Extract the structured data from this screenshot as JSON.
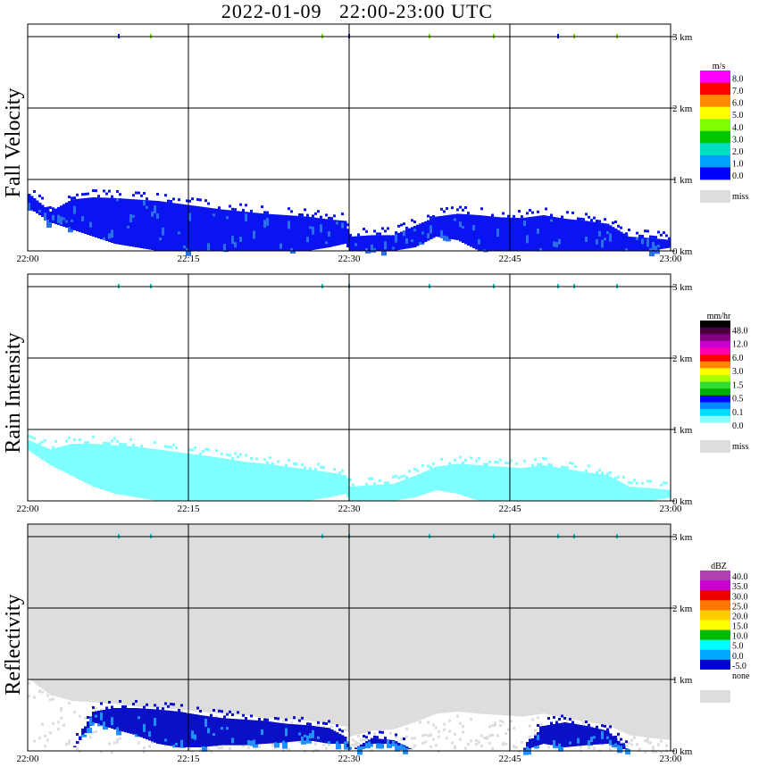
{
  "title": "2022-01-09   22:00-23:00 UTC",
  "x_tick_labels": [
    "22:00",
    "22:15",
    "22:30",
    "22:45",
    "23:00"
  ],
  "y_tick_labels": [
    "0 km",
    "1 km",
    "2 km",
    "3 km"
  ],
  "chart_data": [
    {
      "type": "heatmap",
      "ylabel": "Fall Velocity",
      "legend_unit": "m/s",
      "xlim": [
        "22:00",
        "23:00"
      ],
      "ylim_km": [
        0,
        3
      ],
      "grid": true,
      "background": "#ffffff",
      "legend": {
        "labels": [
          "8.0",
          "7.0",
          "6.0",
          "5.0",
          "4.0",
          "3.0",
          "2.0",
          "1.0",
          "0.0"
        ],
        "colors": [
          "#ff00ff",
          "#ff0000",
          "#ff8c00",
          "#ffff00",
          "#7fff00",
          "#00c800",
          "#00e0c0",
          "#00a0ff",
          "#0000ff"
        ],
        "miss_label": "miss",
        "miss_color": "#dddddd"
      },
      "echo": {
        "base_color": "#0a14f0",
        "accent_color": "#2a70e8",
        "profile_minutes": [
          0,
          2,
          4,
          6,
          8,
          10,
          12,
          14,
          16,
          18,
          20,
          22,
          24,
          26,
          28,
          29.5,
          30,
          32,
          34,
          36,
          38,
          40,
          42,
          44,
          46,
          48,
          50,
          52,
          54,
          56,
          58,
          60
        ],
        "profile_top_km": [
          0.8,
          0.55,
          0.72,
          0.75,
          0.74,
          0.72,
          0.7,
          0.66,
          0.62,
          0.58,
          0.55,
          0.52,
          0.5,
          0.48,
          0.44,
          0.42,
          0.2,
          0.22,
          0.22,
          0.35,
          0.48,
          0.52,
          0.5,
          0.47,
          0.46,
          0.5,
          0.45,
          0.42,
          0.38,
          0.2,
          0.18,
          0.15
        ],
        "profile_bottom_km": [
          0.6,
          0.4,
          0.3,
          0.2,
          0.1,
          0.05,
          0.0,
          0.0,
          0.0,
          0.0,
          0.0,
          0.0,
          0.0,
          0.0,
          0.05,
          0.1,
          0.0,
          0.0,
          0.0,
          0.05,
          0.2,
          0.15,
          0.0,
          0.0,
          0.0,
          0.0,
          0.0,
          0.0,
          0.0,
          0.0,
          0.0,
          0.05
        ]
      }
    },
    {
      "type": "heatmap",
      "ylabel": "Rain Intensity",
      "legend_unit": "mm/hr",
      "xlim": [
        "22:00",
        "23:00"
      ],
      "ylim_km": [
        0,
        3
      ],
      "grid": true,
      "background": "#ffffff",
      "legend": {
        "labels": [
          "48.0",
          "12.0",
          "6.0",
          "3.0",
          "1.5",
          "0.5",
          "0.1",
          "0.0"
        ],
        "colors": [
          "#000000",
          "#4b0040",
          "#800080",
          "#cc00cc",
          "#ff00aa",
          "#ff0000",
          "#ff8800",
          "#ffff00",
          "#aaff00",
          "#33dd33",
          "#00aa00",
          "#0000ff",
          "#0088ff",
          "#00ddff",
          "#88ffff",
          "#ffffff"
        ],
        "miss_label": "miss",
        "miss_color": "#dddddd"
      },
      "echo": {
        "base_color": "#7fffff",
        "accent_color": "#7fffff",
        "profile_minutes": [
          0,
          2,
          4,
          6,
          8,
          10,
          12,
          14,
          16,
          18,
          20,
          22,
          24,
          26,
          28,
          29.5,
          30,
          32,
          34,
          36,
          38,
          40,
          42,
          44,
          46,
          48,
          50,
          52,
          54,
          56,
          58,
          60
        ],
        "profile_top_km": [
          0.85,
          0.72,
          0.8,
          0.8,
          0.78,
          0.76,
          0.72,
          0.68,
          0.64,
          0.6,
          0.55,
          0.52,
          0.48,
          0.44,
          0.4,
          0.36,
          0.2,
          0.22,
          0.24,
          0.35,
          0.48,
          0.52,
          0.5,
          0.48,
          0.46,
          0.5,
          0.45,
          0.4,
          0.36,
          0.2,
          0.18,
          0.15
        ],
        "profile_bottom_km": [
          0.7,
          0.5,
          0.35,
          0.2,
          0.1,
          0.05,
          0.0,
          0.0,
          0.0,
          0.0,
          0.0,
          0.0,
          0.0,
          0.0,
          0.05,
          0.1,
          0.0,
          0.0,
          0.0,
          0.05,
          0.15,
          0.1,
          0.0,
          0.0,
          0.0,
          0.0,
          0.0,
          0.0,
          0.0,
          0.0,
          0.0,
          0.05
        ]
      }
    },
    {
      "type": "heatmap",
      "ylabel": "Reflectivity",
      "legend_unit": "dBZ",
      "xlim": [
        "22:00",
        "23:00"
      ],
      "ylim_km": [
        0,
        3
      ],
      "grid": true,
      "background": "#dddddd",
      "legend": {
        "labels": [
          "40.0",
          "35.0",
          "30.0",
          "25.0",
          "20.0",
          "15.0",
          "10.0",
          "5.0",
          "0.0",
          "-5.0",
          "none"
        ],
        "colors": [
          "#b040b0",
          "#cc00cc",
          "#ee0000",
          "#ff7700",
          "#ffcc00",
          "#ffff00",
          "#00bb00",
          "#00ffff",
          "#00aaff",
          "#0000cc",
          "#ffffff"
        ],
        "miss_label": "",
        "miss_color": "#dddddd"
      },
      "echo": {
        "base_color": "#0a10c8",
        "accent_color": "#1e90ff",
        "white_top_km": [
          1.0,
          0.78,
          0.7,
          0.68,
          0.66,
          0.62,
          0.6,
          0.58,
          0.55,
          0.52,
          0.5,
          0.46,
          0.44,
          0.42,
          0.38,
          0.34,
          0.2,
          0.28,
          0.3,
          0.4,
          0.52,
          0.55,
          0.52,
          0.5,
          0.48,
          0.52,
          0.46,
          0.4,
          0.36,
          0.22,
          0.18,
          0.15
        ],
        "profile_minutes": [
          0,
          2,
          4,
          6,
          8,
          10,
          12,
          14,
          16,
          18,
          20,
          22,
          24,
          26,
          28,
          29.5,
          30,
          32,
          34,
          36,
          38,
          40,
          42,
          44,
          46,
          48,
          50,
          52,
          54,
          56,
          58,
          60
        ],
        "profile_top_km": [
          0,
          0,
          0,
          0.55,
          0.6,
          0.6,
          0.58,
          0.55,
          0.5,
          0.46,
          0.44,
          0.42,
          0.38,
          0.36,
          0.32,
          0.2,
          0,
          0.18,
          0.15,
          0,
          0,
          0,
          0,
          0,
          0,
          0.35,
          0.4,
          0.35,
          0.28,
          0,
          0,
          0
        ],
        "profile_bottom_km": [
          0,
          0,
          0,
          0.4,
          0.3,
          0.22,
          0.1,
          0.05,
          0.05,
          0.08,
          0.08,
          0.1,
          0.12,
          0.15,
          0.1,
          0.1,
          0,
          0.1,
          0.1,
          0,
          0,
          0,
          0,
          0,
          0,
          0.1,
          0.05,
          0.08,
          0.1,
          0,
          0,
          0
        ]
      }
    }
  ],
  "top_speckle_minutes": [
    8.5,
    11.5,
    27.5,
    30,
    37.5,
    43.5,
    49.5,
    51,
    55
  ]
}
